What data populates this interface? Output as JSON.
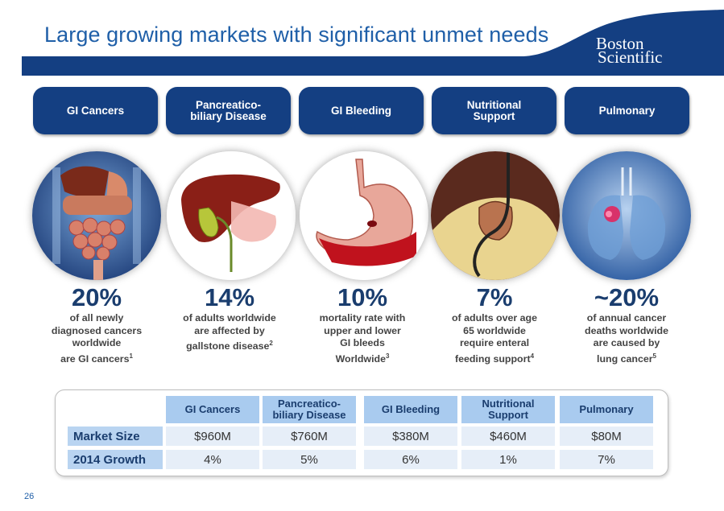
{
  "title": "Large growing markets with significant unmet needs",
  "logo": {
    "line1": "Boston",
    "line2": "Scientific"
  },
  "categories": [
    {
      "label": "GI Cancers"
    },
    {
      "label": "Pancreatico-biliary Disease"
    },
    {
      "label": "GI Bleeding"
    },
    {
      "label": "Nutritional Support"
    },
    {
      "label": "Pulmonary"
    }
  ],
  "stats": [
    {
      "pct": "20%",
      "desc": "of all newly\ndiagnosed cancers\nworldwide\nare GI cancers",
      "ref": "1"
    },
    {
      "pct": "14%",
      "desc": "of adults worldwide\nare affected by\ngallstone disease",
      "ref": "2"
    },
    {
      "pct": "10%",
      "desc": "mortality rate with\nupper and lower\nGI bleeds\nWorldwide",
      "ref": "3"
    },
    {
      "pct": "7%",
      "desc": "of adults over age\n65 worldwide\nrequire enteral\nfeeding support",
      "ref": "4"
    },
    {
      "pct": "~20%",
      "desc": "of annual cancer\ndeaths worldwide\nare caused by\nlung cancer",
      "ref": "5"
    }
  ],
  "table": {
    "headers": [
      "GI Cancers",
      "Pancreatico-biliary Disease",
      "GI Bleeding",
      "Nutritional Support",
      "Pulmonary"
    ],
    "rows": [
      {
        "label": "Market Size",
        "values": [
          "$960M",
          "$760M",
          "$380M",
          "$460M",
          "$80M"
        ]
      },
      {
        "label": "2014 Growth",
        "values": [
          "4%",
          "5%",
          "6%",
          "1%",
          "7%"
        ]
      }
    ]
  },
  "page_number": "26",
  "colors": {
    "brand_navy": "#143f82",
    "title_blue": "#1f5fa8",
    "header_cell": "#a9cbef",
    "data_cell": "#e6eef8"
  }
}
